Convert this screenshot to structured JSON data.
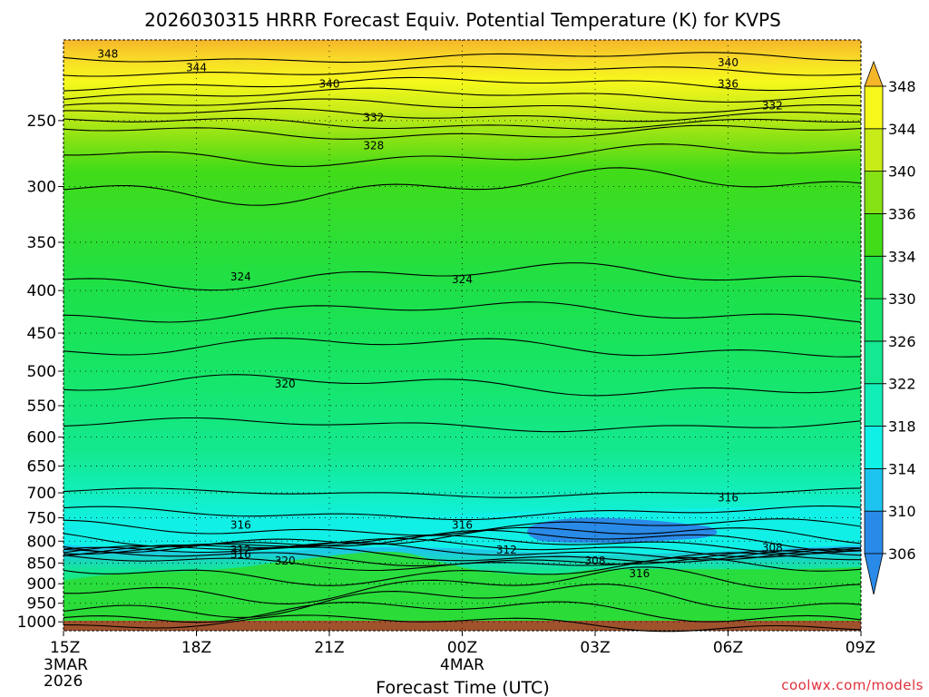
{
  "title": "2026030315 HRRR Forecast Equiv. Potential Temperature (K) for KVPS",
  "credit": "coolwx.com/models",
  "colors": {
    "terrain": "#a0522d",
    "contour": "#000000",
    "fill_ramp": [
      "#2a8ae8",
      "#1ec4f0",
      "#11f0e6",
      "#12eeb8",
      "#14e890",
      "#16e66c",
      "#1ee048",
      "#42dc18",
      "#86e214",
      "#c8ec18",
      "#f6f81c",
      "#f8d828",
      "#f6b62a"
    ]
  },
  "chart_data": {
    "type": "heatmap",
    "title": "2026030315 HRRR Forecast Equiv. Potential Temperature (K) for KVPS",
    "xlabel": "Forecast Time (UTC)",
    "ylabel": "",
    "y_scale": "log",
    "y_inverted": true,
    "ylim": [
      1025,
      200
    ],
    "x_ticks": [
      {
        "label": "15Z",
        "date": "3MAR",
        "year": "2026"
      },
      {
        "label": "18Z"
      },
      {
        "label": "21Z"
      },
      {
        "label": "00Z",
        "date": "4MAR"
      },
      {
        "label": "03Z"
      },
      {
        "label": "06Z"
      },
      {
        "label": "09Z"
      }
    ],
    "y_ticks": [
      250,
      300,
      350,
      400,
      450,
      500,
      550,
      600,
      650,
      700,
      750,
      800,
      850,
      900,
      950,
      1000
    ],
    "grid": true,
    "colorbar": {
      "levels": [
        306,
        310,
        314,
        318,
        322,
        326,
        330,
        334,
        336,
        340,
        344,
        348
      ],
      "extend": "both"
    },
    "contour_interval_K": 2,
    "contour_labels": [
      {
        "value": 348,
        "time": "16Z",
        "pressure": 208
      },
      {
        "value": 344,
        "time": "18Z",
        "pressure": 216
      },
      {
        "value": 340,
        "time": "21Z",
        "pressure": 226
      },
      {
        "value": 340,
        "time": "06Z",
        "pressure": 213
      },
      {
        "value": 336,
        "time": "06Z",
        "pressure": 226
      },
      {
        "value": 332,
        "time": "22Z",
        "pressure": 248
      },
      {
        "value": 332,
        "time": "07Z",
        "pressure": 240
      },
      {
        "value": 328,
        "time": "22Z",
        "pressure": 268
      },
      {
        "value": 324,
        "time": "19Z",
        "pressure": 385
      },
      {
        "value": 324,
        "time": "00Z",
        "pressure": 388
      },
      {
        "value": 320,
        "time": "20Z",
        "pressure": 518
      },
      {
        "value": 316,
        "time": "19Z",
        "pressure": 765
      },
      {
        "value": 316,
        "time": "00Z",
        "pressure": 765
      },
      {
        "value": 316,
        "time": "06Z",
        "pressure": 710
      },
      {
        "value": 312,
        "time": "19Z",
        "pressure": 820
      },
      {
        "value": 316,
        "time": "19Z",
        "pressure": 830
      },
      {
        "value": 320,
        "time": "20Z",
        "pressure": 845
      },
      {
        "value": 312,
        "time": "01Z",
        "pressure": 820
      },
      {
        "value": 308,
        "time": "03Z",
        "pressure": 845
      },
      {
        "value": 308,
        "time": "07Z",
        "pressure": 815
      },
      {
        "value": 316,
        "time": "04Z",
        "pressure": 875
      }
    ]
  }
}
